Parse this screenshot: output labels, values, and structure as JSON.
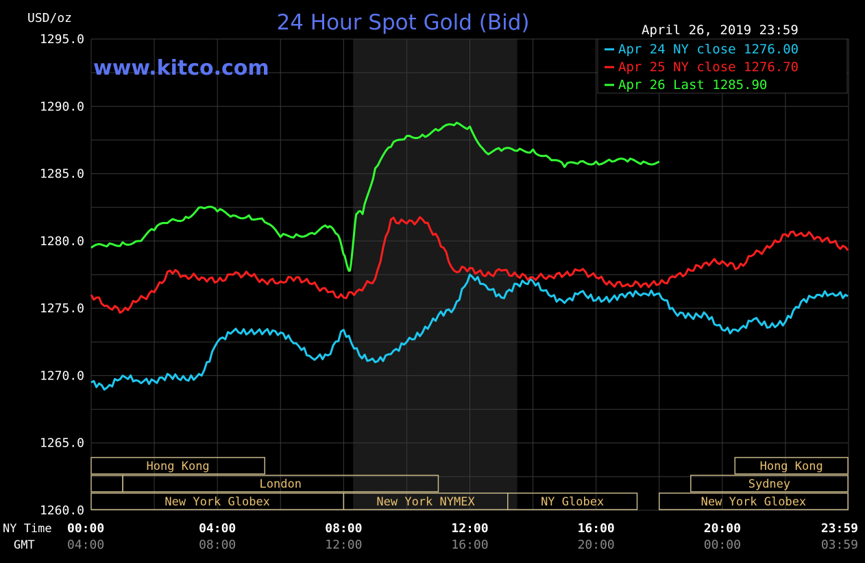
{
  "header": {
    "title": "24 Hour Spot Gold (Bid)",
    "watermark": "www.kitco.com",
    "date_stamp": "April 26, 2019 23:59",
    "unit_label": "USD/oz"
  },
  "time_labels": {
    "ny_row_label": "NY Time",
    "gmt_row_label": "GMT",
    "ny": [
      "00:00",
      "04:00",
      "08:00",
      "12:00",
      "16:00",
      "20:00",
      "23:59"
    ],
    "gmt": [
      "04:00",
      "08:00",
      "12:00",
      "16:00",
      "20:00",
      "00:00",
      "03:59"
    ]
  },
  "sessions": {
    "row1": [
      {
        "label": "Hong Kong",
        "start": 0,
        "end": 5.5
      },
      {
        "label": "Hong Kong",
        "start": 20.4,
        "end": 23.98
      }
    ],
    "row2": [
      {
        "label": "",
        "start": 0,
        "end": 1
      },
      {
        "label": "London",
        "start": 1,
        "end": 11
      },
      {
        "label": "Sydney",
        "start": 19,
        "end": 23.98
      }
    ],
    "row3": [
      {
        "label": "New York Globex",
        "start": 0,
        "end": 8
      },
      {
        "label": "New York NYMEX",
        "start": 8,
        "end": 13.2
      },
      {
        "label": "NY Globex",
        "start": 13.2,
        "end": 17.3
      },
      {
        "label": "New York Globex",
        "start": 18,
        "end": 23.98
      }
    ]
  },
  "colors": {
    "background": "#000000",
    "grid": "#3a3a3a",
    "shade": "#1a1a1a",
    "title": "#5b74f0",
    "axis_text": "#ffffff",
    "dim_text": "#8a8a8a",
    "session_border": "#c8b88a",
    "session_text": "#e8c070"
  },
  "chart_data": {
    "type": "line",
    "title": "24 Hour Spot Gold (Bid)",
    "ylabel": "USD/oz",
    "ylim": [
      1260,
      1295
    ],
    "yticks": [
      "1295.0",
      "1290.0",
      "1285.0",
      "1280.0",
      "1275.0",
      "1270.0",
      "1265.0",
      "1260.0"
    ],
    "xlim": [
      0,
      24
    ],
    "shaded_region": [
      8.3,
      13.5
    ],
    "grid": true,
    "legend_position": "top-right",
    "series": [
      {
        "name": "Apr 24 NY close 1276.00",
        "color": "#1ec8f0",
        "x": [
          0,
          0.5,
          1,
          1.5,
          2,
          2.5,
          3,
          3.5,
          4,
          4.5,
          5,
          5.5,
          6,
          6.5,
          7,
          7.5,
          8,
          8.5,
          9,
          9.5,
          10,
          10.5,
          11,
          11.5,
          12,
          12.5,
          13,
          13.5,
          14,
          14.5,
          15,
          15.5,
          16,
          16.5,
          17,
          17.5,
          18,
          18.5,
          19,
          19.5,
          20,
          20.5,
          21,
          21.5,
          22,
          22.5,
          23,
          23.5,
          23.98
        ],
        "values": [
          1269.5,
          1269.1,
          1270.0,
          1269.6,
          1269.6,
          1270.0,
          1269.7,
          1270.0,
          1272.5,
          1273.3,
          1273.2,
          1273.3,
          1273.2,
          1272.4,
          1271.3,
          1271.5,
          1273.4,
          1271.5,
          1271.0,
          1271.6,
          1272.5,
          1273.2,
          1274.5,
          1275.0,
          1277.5,
          1276.7,
          1275.8,
          1276.8,
          1277.0,
          1276.0,
          1275.4,
          1276.2,
          1275.6,
          1275.7,
          1276.1,
          1276.1,
          1276.1,
          1274.7,
          1274.4,
          1274.5,
          1273.4,
          1273.3,
          1274.2,
          1273.6,
          1274.0,
          1275.5,
          1276.0,
          1276.1,
          1275.9
        ]
      },
      {
        "name": "Apr 25 NY close 1276.70",
        "color": "#ff1e1e",
        "x": [
          0,
          0.5,
          1,
          1.5,
          2,
          2.5,
          3,
          3.5,
          4,
          4.5,
          5,
          5.5,
          6,
          6.5,
          7,
          7.5,
          8,
          8.5,
          9,
          9.5,
          10,
          10.5,
          11,
          11.5,
          12,
          12.5,
          13,
          13.5,
          14,
          14.5,
          15,
          15.5,
          16,
          16.5,
          17,
          17.5,
          18,
          18.5,
          19,
          19.5,
          20,
          20.5,
          21,
          21.5,
          22,
          22.5,
          23,
          23.5,
          23.98
        ],
        "values": [
          1276.0,
          1275.2,
          1274.8,
          1275.6,
          1276.2,
          1277.8,
          1277.4,
          1277.3,
          1277.0,
          1277.5,
          1277.5,
          1277.0,
          1277.0,
          1277.3,
          1276.8,
          1276.2,
          1275.8,
          1276.4,
          1277.2,
          1281.6,
          1281.3,
          1281.6,
          1280.2,
          1277.8,
          1278.0,
          1277.4,
          1277.8,
          1277.4,
          1277.3,
          1277.4,
          1277.5,
          1277.8,
          1277.3,
          1276.8,
          1276.8,
          1276.8,
          1276.8,
          1277.3,
          1277.8,
          1278.4,
          1278.5,
          1278.0,
          1279.0,
          1279.5,
          1280.5,
          1280.6,
          1280.3,
          1279.9,
          1279.3
        ]
      },
      {
        "name": "Apr 26 Last 1285.90",
        "color": "#33ff33",
        "x": [
          0,
          0.5,
          1,
          1.5,
          2,
          2.5,
          3,
          3.5,
          4,
          4.5,
          5,
          5.5,
          6,
          6.5,
          7,
          7.5,
          7.8,
          8,
          8.2,
          8.4,
          8.6,
          9,
          9.5,
          10,
          10.5,
          11,
          11.5,
          12,
          12.5,
          13,
          13.5,
          14,
          14.5,
          15,
          15.5,
          16,
          16.5,
          17,
          17.5,
          18
        ],
        "values": [
          1279.5,
          1279.6,
          1279.9,
          1280.0,
          1280.8,
          1281.5,
          1281.8,
          1282.5,
          1282.2,
          1281.9,
          1281.9,
          1281.4,
          1280.3,
          1280.5,
          1280.6,
          1281.0,
          1280.5,
          1279.0,
          1277.8,
          1282.0,
          1282.0,
          1285.4,
          1287.0,
          1287.8,
          1287.9,
          1288.2,
          1288.6,
          1288.5,
          1286.6,
          1286.7,
          1286.7,
          1286.8,
          1286.2,
          1285.5,
          1285.9,
          1285.9,
          1285.9,
          1285.9,
          1285.9,
          1285.9
        ]
      }
    ]
  }
}
